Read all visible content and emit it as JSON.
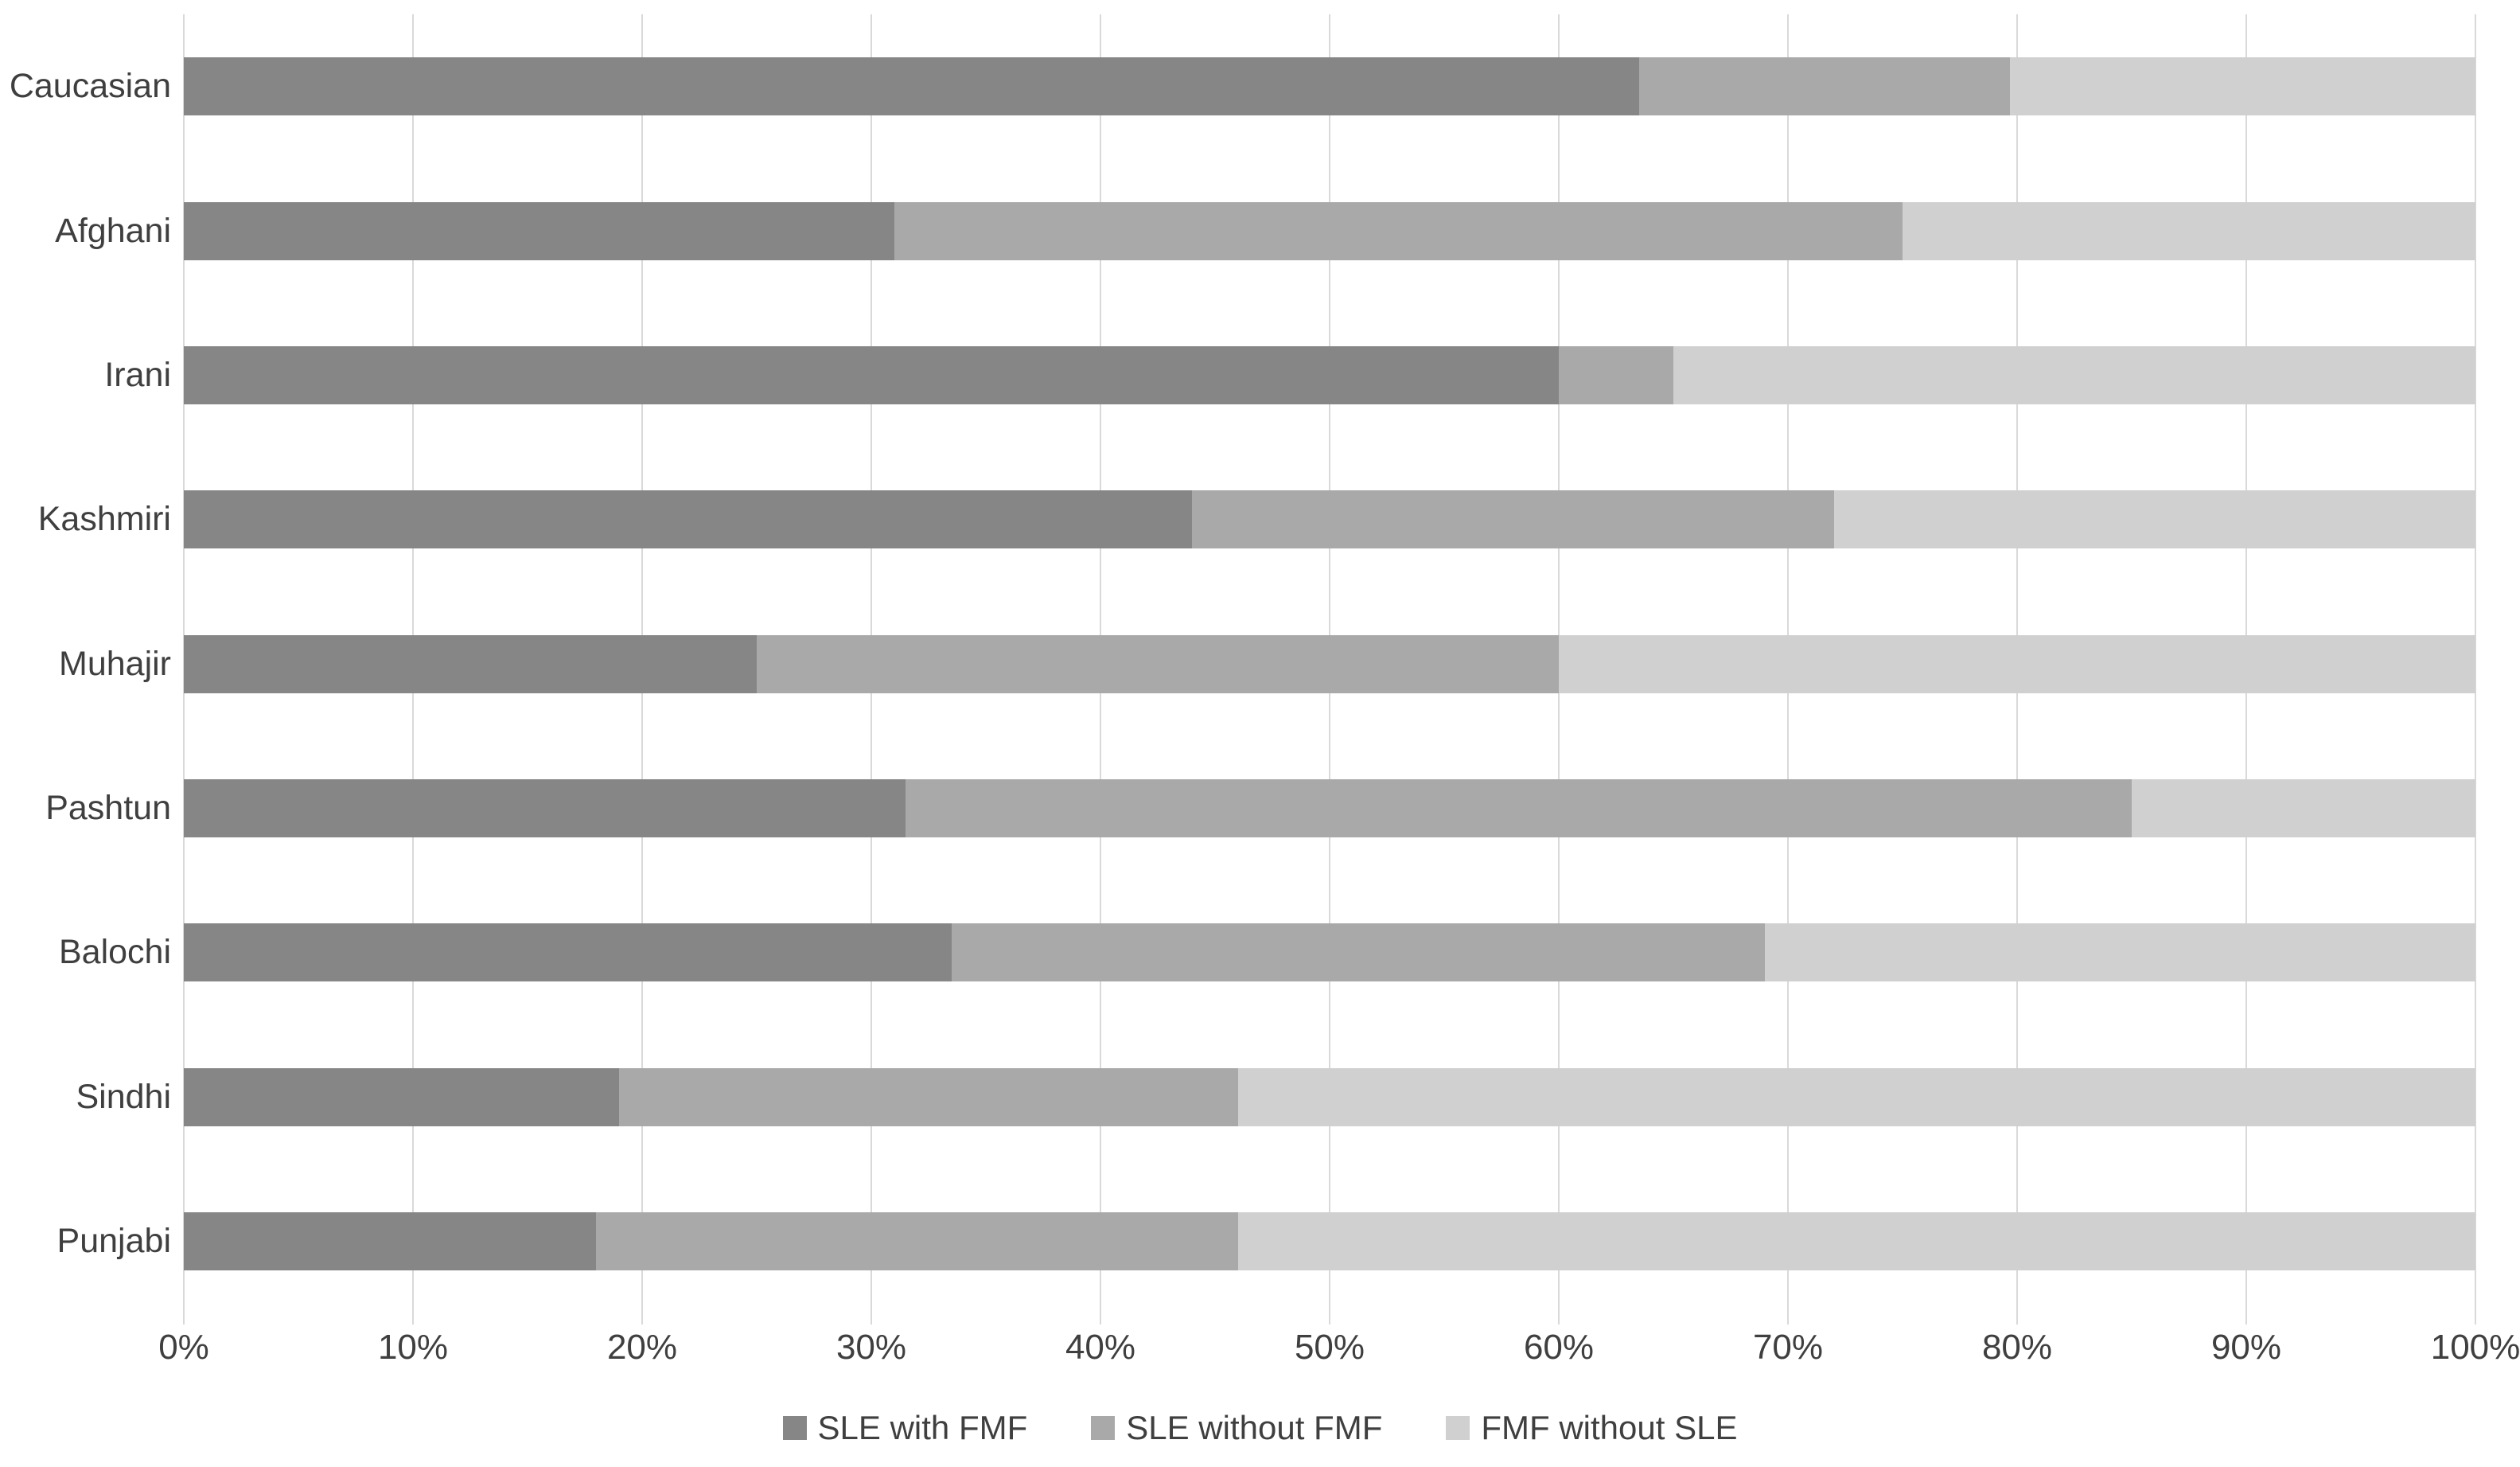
{
  "chart_data": {
    "type": "bar",
    "orientation": "horizontal",
    "stacked": true,
    "title": "",
    "xlabel": "",
    "ylabel": "",
    "categories": [
      "Caucasian",
      "Afghani",
      "Irani",
      "Kashmiri",
      "Muhajir",
      "Pashtun",
      "Balochi",
      "Sindhi",
      "Punjabi"
    ],
    "series": [
      {
        "name": "SLE with FMF",
        "color": "#868686",
        "values": [
          63.5,
          31.0,
          60.0,
          44.0,
          25.0,
          31.5,
          33.5,
          19.0,
          18.0
        ]
      },
      {
        "name": "SLE without FMF",
        "color": "#a9a9a9",
        "values": [
          16.2,
          44.0,
          5.0,
          28.0,
          35.0,
          53.5,
          35.5,
          27.0,
          28.0
        ]
      },
      {
        "name": "FMF without SLE",
        "color": "#d0d0d0",
        "values": [
          20.3,
          25.0,
          35.0,
          28.0,
          40.0,
          15.0,
          31.0,
          54.0,
          54.0
        ]
      }
    ],
    "x_ticks": [
      "0%",
      "10%",
      "20%",
      "30%",
      "40%",
      "50%",
      "60%",
      "70%",
      "80%",
      "90%",
      "100%"
    ],
    "xlim": [
      0,
      100
    ],
    "grid": "vertical-gridlines",
    "legend_position": "bottom-center"
  },
  "colors": {
    "gridline": "#d9d9d9",
    "axis_text": "#3f3f3f",
    "background": "#ffffff"
  }
}
